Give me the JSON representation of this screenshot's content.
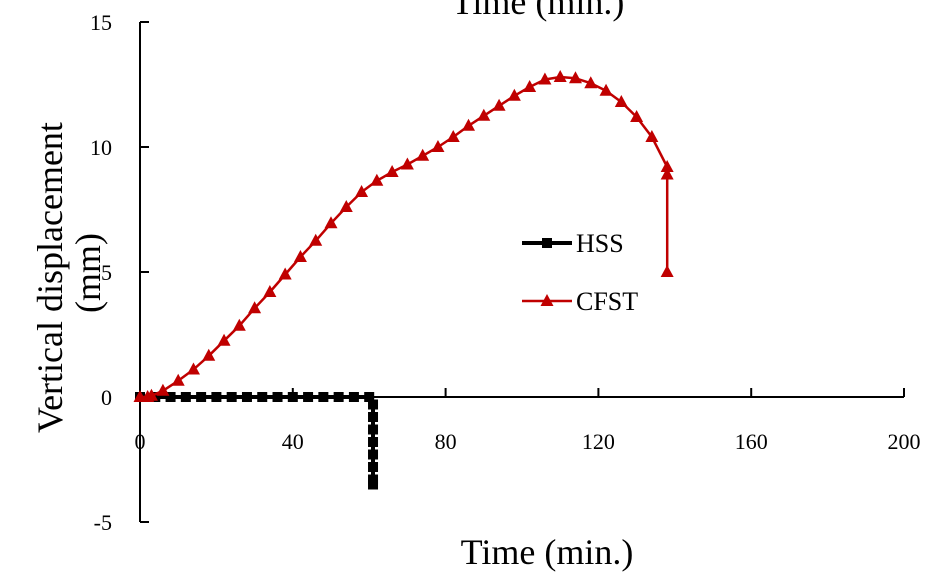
{
  "chart_data": {
    "type": "line",
    "title": "Time (min.)",
    "xlabel": "Time (min.)",
    "ylabel": "Vertical displacement (mm)",
    "xlim": [
      0,
      200
    ],
    "ylim": [
      -5,
      15
    ],
    "xticks": [
      0,
      40,
      80,
      120,
      160,
      200
    ],
    "yticks": [
      -5,
      0,
      5,
      10,
      15
    ],
    "grid": false,
    "legend_position": "center",
    "series": [
      {
        "name": "HSS",
        "color": "#000000",
        "marker": "square",
        "points": [
          [
            0,
            0
          ],
          [
            4,
            0
          ],
          [
            8,
            0
          ],
          [
            12,
            0
          ],
          [
            16,
            0
          ],
          [
            20,
            0
          ],
          [
            24,
            0
          ],
          [
            28,
            0
          ],
          [
            32,
            0
          ],
          [
            36,
            0
          ],
          [
            40,
            0
          ],
          [
            44,
            0
          ],
          [
            48,
            0
          ],
          [
            52,
            0
          ],
          [
            56,
            0
          ],
          [
            60,
            0
          ],
          [
            61,
            -0.3
          ],
          [
            61,
            -0.8
          ],
          [
            61,
            -1.3
          ],
          [
            61,
            -1.8
          ],
          [
            61,
            -2.3
          ],
          [
            61,
            -2.8
          ],
          [
            61,
            -3.3
          ],
          [
            61,
            -3.5
          ]
        ]
      },
      {
        "name": "CFST",
        "color": "#c00000",
        "marker": "triangle",
        "points": [
          [
            0,
            0
          ],
          [
            2,
            0
          ],
          [
            3,
            0.05
          ],
          [
            6,
            0.25
          ],
          [
            10,
            0.65
          ],
          [
            14,
            1.1
          ],
          [
            18,
            1.65
          ],
          [
            22,
            2.25
          ],
          [
            26,
            2.85
          ],
          [
            30,
            3.55
          ],
          [
            34,
            4.2
          ],
          [
            38,
            4.9
          ],
          [
            42,
            5.6
          ],
          [
            46,
            6.25
          ],
          [
            50,
            6.95
          ],
          [
            54,
            7.6
          ],
          [
            58,
            8.2
          ],
          [
            62,
            8.65
          ],
          [
            66,
            9.0
          ],
          [
            70,
            9.3
          ],
          [
            74,
            9.65
          ],
          [
            78,
            10.0
          ],
          [
            82,
            10.4
          ],
          [
            86,
            10.85
          ],
          [
            90,
            11.25
          ],
          [
            94,
            11.65
          ],
          [
            98,
            12.05
          ],
          [
            102,
            12.4
          ],
          [
            106,
            12.7
          ],
          [
            110,
            12.8
          ],
          [
            114,
            12.75
          ],
          [
            118,
            12.55
          ],
          [
            122,
            12.25
          ],
          [
            126,
            11.8
          ],
          [
            130,
            11.2
          ],
          [
            134,
            10.4
          ],
          [
            138,
            9.2
          ],
          [
            138,
            8.9
          ],
          [
            138,
            5.0
          ]
        ]
      }
    ]
  }
}
